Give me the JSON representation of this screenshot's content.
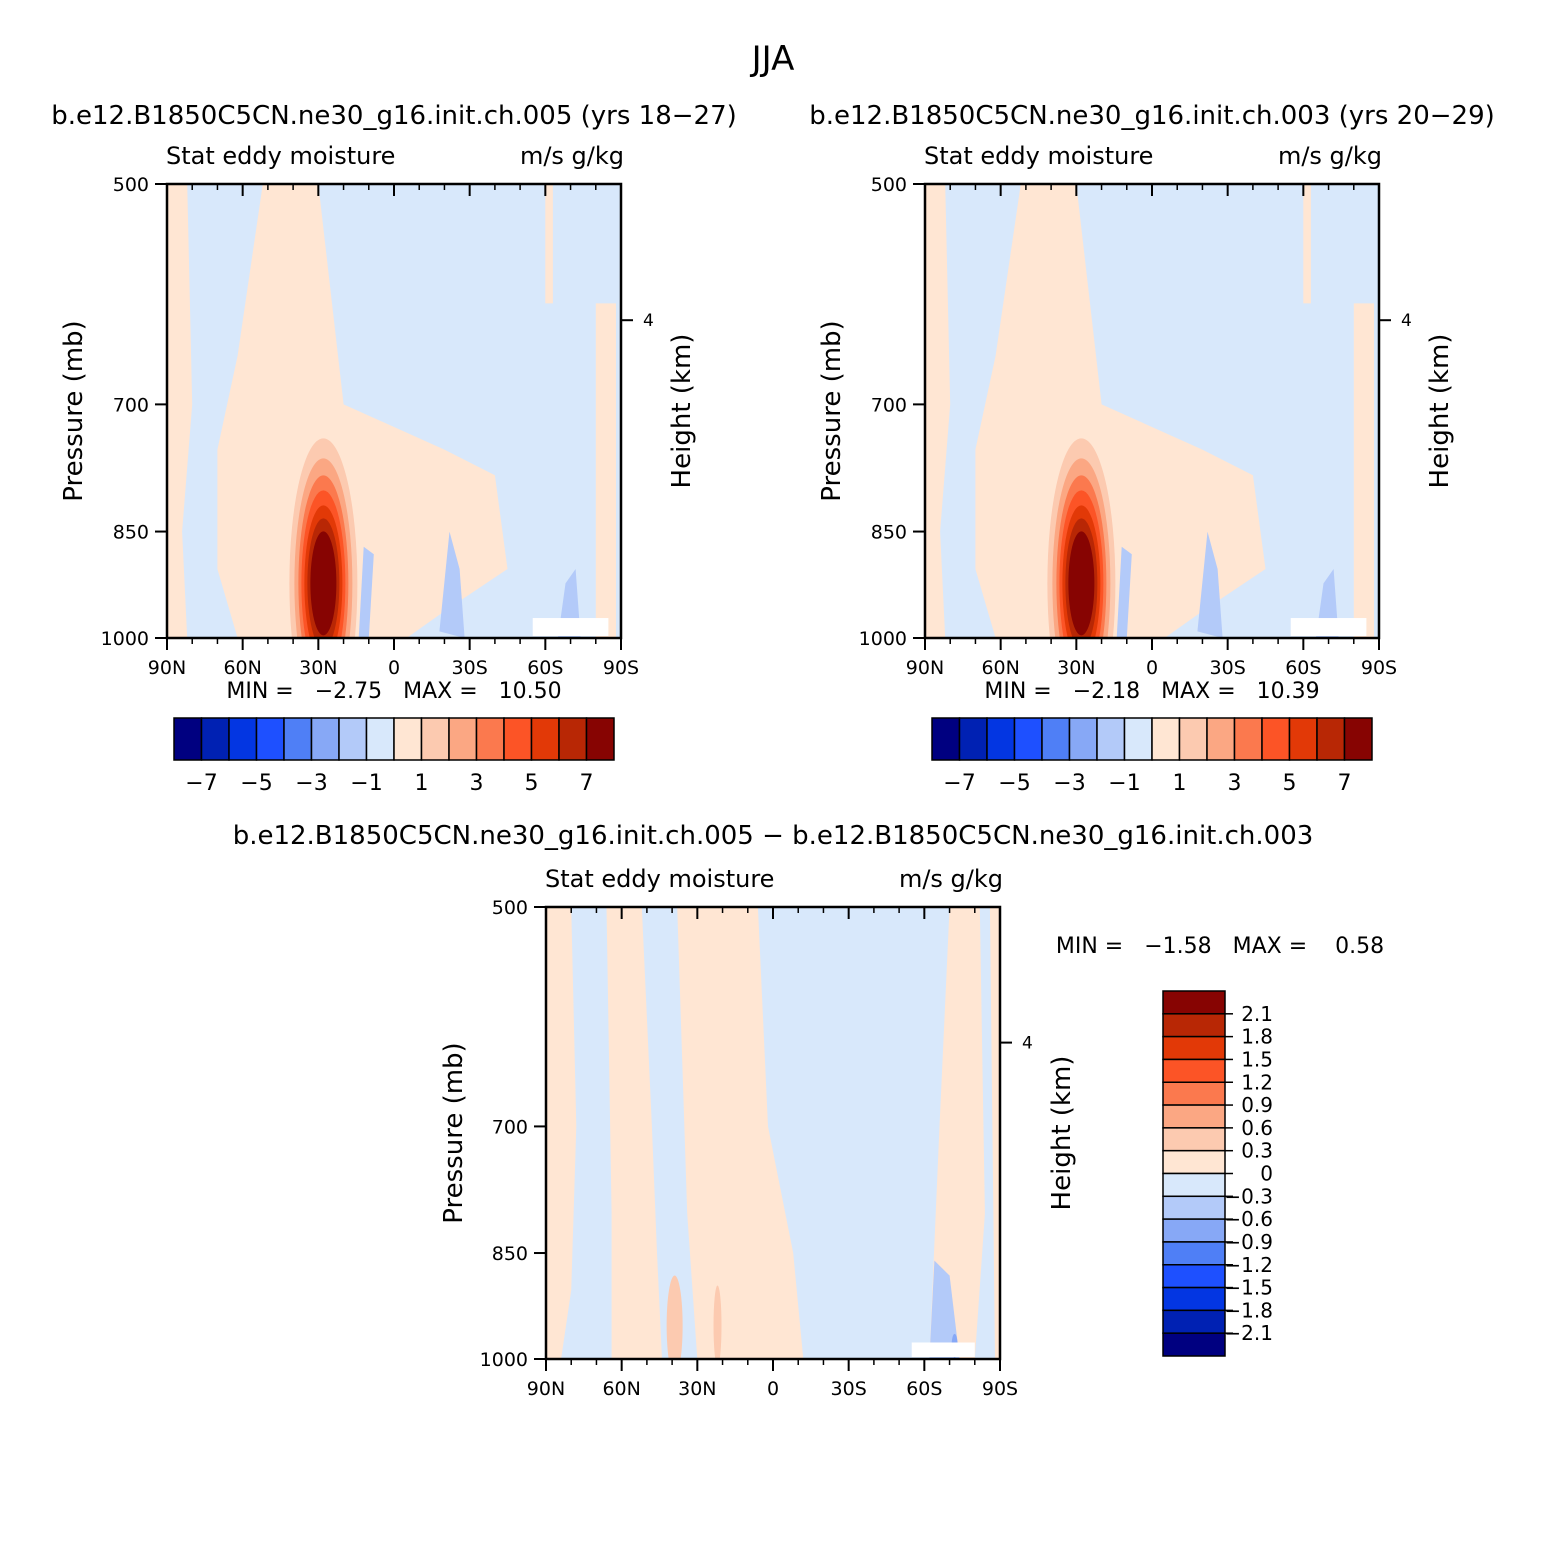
{
  "title": "JJA",
  "colors": {
    "fifteen": [
      "#000080",
      "#0021b3",
      "#0336e2",
      "#1e50ff",
      "#4f7ff6",
      "#87a8f6",
      "#b3caf9",
      "#d8e8fb",
      "#ffe6d3",
      "#fccab0",
      "#fba783",
      "#fb794e",
      "#fc5426",
      "#e23907",
      "#b82705",
      "#870402"
    ],
    "diff": [
      "#000080",
      "#0021b3",
      "#0336e2",
      "#1e50ff",
      "#4f7ff6",
      "#87a8f6",
      "#b3caf9",
      "#d8e8fb",
      "#ffe6d3",
      "#fccab0",
      "#fba783",
      "#fb794e",
      "#fc5426",
      "#e23907",
      "#b82705",
      "#870402"
    ]
  },
  "panels": [
    {
      "title": "b.e12.B1850C5CN.ne30_g16.init.ch.005 (yrs 18−27)",
      "left_label": "Stat eddy moisture",
      "right_label": "m/s g/kg",
      "ylabel": "Pressure (mb)",
      "ylabel_right": "Height (km)",
      "min_max": "MIN =   −2.75   MAX =   10.50",
      "x_ticks": [
        "90N",
        "60N",
        "30N",
        "0",
        "30S",
        "60S",
        "90S"
      ],
      "y_ticks": [
        "500",
        "700",
        "850",
        "1000"
      ],
      "y_right_ticks": [
        "4"
      ],
      "colorbar_labels": [
        "−7",
        "−5",
        "−3",
        "−1",
        "1",
        "3",
        "5",
        "7"
      ]
    },
    {
      "title": "b.e12.B1850C5CN.ne30_g16.init.ch.003 (yrs 20−29)",
      "left_label": "Stat eddy moisture",
      "right_label": "m/s g/kg",
      "ylabel": "Pressure (mb)",
      "ylabel_right": "Height (km)",
      "min_max": "MIN =   −2.18   MAX =   10.39",
      "x_ticks": [
        "90N",
        "60N",
        "30N",
        "0",
        "30S",
        "60S",
        "90S"
      ],
      "y_ticks": [
        "500",
        "700",
        "850",
        "1000"
      ],
      "y_right_ticks": [
        "4"
      ],
      "colorbar_labels": [
        "−7",
        "−5",
        "−3",
        "−1",
        "1",
        "3",
        "5",
        "7"
      ]
    },
    {
      "title": "b.e12.B1850C5CN.ne30_g16.init.ch.005 − b.e12.B1850C5CN.ne30_g16.init.ch.003",
      "left_label": "Stat eddy moisture",
      "right_label": "m/s g/kg",
      "ylabel": "Pressure (mb)",
      "ylabel_right": "Height (km)",
      "min_max": "MIN =   −1.58   MAX =    0.58",
      "x_ticks": [
        "90N",
        "60N",
        "30N",
        "0",
        "30S",
        "60S",
        "90S"
      ],
      "y_ticks": [
        "500",
        "700",
        "850",
        "1000"
      ],
      "y_right_ticks": [
        "4"
      ],
      "colorbar_labels": [
        "2.1",
        "1.8",
        "1.5",
        "1.2",
        "0.9",
        "0.6",
        "0.3",
        "0",
        "−0.3",
        "−0.6",
        "−0.9",
        "−1.2",
        "−1.5",
        "−1.8",
        "−2.1"
      ]
    }
  ],
  "chart_data": [
    {
      "type": "heatmap",
      "title": "b.e12.B1850C5CN.ne30_g16.init.ch.005 (yrs 18−27)",
      "xlabel": "",
      "ylabel": "Pressure (mb)",
      "x_range": [
        "90N",
        "90S"
      ],
      "y_range": [
        1000,
        500
      ],
      "min": -2.75,
      "max": 10.5,
      "levels": [
        -7,
        -6,
        -5,
        -4,
        -3,
        -2,
        -1,
        0,
        1,
        2,
        3,
        4,
        5,
        6,
        7
      ],
      "features": [
        {
          "label": "maximum near 30N, 850-1000 mb",
          "lat": 28,
          "p": 950,
          "value": 10.5
        },
        {
          "label": "positive band 60N-0, 500-850 mb",
          "value": 1
        },
        {
          "label": "negative values south of equator",
          "value": -1
        },
        {
          "label": "minimum near 60S surface",
          "value": -2.75
        }
      ]
    },
    {
      "type": "heatmap",
      "title": "b.e12.B1850C5CN.ne30_g16.init.ch.003 (yrs 20−29)",
      "xlabel": "",
      "ylabel": "Pressure (mb)",
      "x_range": [
        "90N",
        "90S"
      ],
      "y_range": [
        1000,
        500
      ],
      "min": -2.18,
      "max": 10.39,
      "levels": [
        -7,
        -6,
        -5,
        -4,
        -3,
        -2,
        -1,
        0,
        1,
        2,
        3,
        4,
        5,
        6,
        7
      ],
      "features": [
        {
          "label": "maximum near 30N, 850-1000 mb",
          "lat": 28,
          "p": 950,
          "value": 10.39
        },
        {
          "label": "positive band 60N-0, 500-850 mb",
          "value": 1
        },
        {
          "label": "negative values south of equator",
          "value": -1
        },
        {
          "label": "minimum near 60S surface",
          "value": -2.18
        }
      ]
    },
    {
      "type": "heatmap",
      "title": "b.e12.B1850C5CN.ne30_g16.init.ch.005 − b.e12.B1850C5CN.ne30_g16.init.ch.003",
      "xlabel": "",
      "ylabel": "Pressure (mb)",
      "x_range": [
        "90N",
        "90S"
      ],
      "y_range": [
        1000,
        500
      ],
      "min": -1.58,
      "max": 0.58,
      "levels": [
        -2.1,
        -1.8,
        -1.5,
        -1.2,
        -0.9,
        -0.6,
        -0.3,
        0,
        0.3,
        0.6,
        0.9,
        1.2,
        1.5,
        1.8,
        2.1
      ],
      "features": [
        {
          "label": "weak positive bands 90N-30S",
          "value": 0.3
        },
        {
          "label": "weak negative bands",
          "value": -0.3
        },
        {
          "label": "minimum near 65S surface",
          "value": -1.58
        }
      ]
    }
  ]
}
